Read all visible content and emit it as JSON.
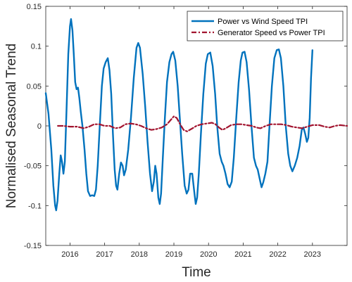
{
  "chart_data": {
    "type": "line",
    "xlabel": "Time",
    "ylabel": "Normalised Seasonal Trend",
    "xlim": [
      2015.3,
      2024.0
    ],
    "ylim": [
      -0.15,
      0.15
    ],
    "x_ticks": [
      2016,
      2017,
      2018,
      2019,
      2020,
      2021,
      2022,
      2023
    ],
    "x_tick_labels": [
      "2016",
      "2017",
      "2018",
      "2019",
      "2020",
      "2021",
      "2022",
      "2023"
    ],
    "y_ticks": [
      -0.15,
      -0.1,
      -0.05,
      0,
      0.05,
      0.1,
      0.15
    ],
    "y_tick_labels": [
      "-0.15",
      "-0.1",
      "-0.05",
      "0",
      "0.05",
      "0.1",
      "0.15"
    ],
    "grid": false,
    "legend_position": "top-right",
    "series": [
      {
        "name": "Power vs Wind Speed TPI",
        "color": "#0072BD",
        "style": "solid",
        "points": [
          [
            2015.3,
            0.041
          ],
          [
            2015.38,
            0.015
          ],
          [
            2015.46,
            -0.03
          ],
          [
            2015.52,
            -0.075
          ],
          [
            2015.57,
            -0.1
          ],
          [
            2015.6,
            -0.106
          ],
          [
            2015.64,
            -0.094
          ],
          [
            2015.69,
            -0.06
          ],
          [
            2015.73,
            -0.037
          ],
          [
            2015.77,
            -0.045
          ],
          [
            2015.81,
            -0.06
          ],
          [
            2015.85,
            -0.045
          ],
          [
            2015.9,
            0.02
          ],
          [
            2015.95,
            0.09
          ],
          [
            2016.0,
            0.125
          ],
          [
            2016.03,
            0.134
          ],
          [
            2016.07,
            0.12
          ],
          [
            2016.11,
            0.09
          ],
          [
            2016.15,
            0.055
          ],
          [
            2016.19,
            0.046
          ],
          [
            2016.23,
            0.048
          ],
          [
            2016.27,
            0.035
          ],
          [
            2016.31,
            0.018
          ],
          [
            2016.36,
            0.0
          ],
          [
            2016.42,
            -0.03
          ],
          [
            2016.47,
            -0.06
          ],
          [
            2016.52,
            -0.082
          ],
          [
            2016.58,
            -0.088
          ],
          [
            2016.64,
            -0.087
          ],
          [
            2016.7,
            -0.088
          ],
          [
            2016.75,
            -0.08
          ],
          [
            2016.8,
            -0.05
          ],
          [
            2016.86,
            0.0
          ],
          [
            2016.92,
            0.05
          ],
          [
            2016.97,
            0.072
          ],
          [
            2017.03,
            0.08
          ],
          [
            2017.09,
            0.085
          ],
          [
            2017.14,
            0.07
          ],
          [
            2017.19,
            0.04
          ],
          [
            2017.24,
            -0.01
          ],
          [
            2017.29,
            -0.055
          ],
          [
            2017.33,
            -0.075
          ],
          [
            2017.37,
            -0.08
          ],
          [
            2017.42,
            -0.06
          ],
          [
            2017.47,
            -0.046
          ],
          [
            2017.52,
            -0.05
          ],
          [
            2017.56,
            -0.062
          ],
          [
            2017.61,
            -0.055
          ],
          [
            2017.68,
            -0.03
          ],
          [
            2017.76,
            0.01
          ],
          [
            2017.84,
            0.06
          ],
          [
            2017.92,
            0.098
          ],
          [
            2017.97,
            0.104
          ],
          [
            2018.02,
            0.098
          ],
          [
            2018.1,
            0.065
          ],
          [
            2018.17,
            0.025
          ],
          [
            2018.24,
            -0.02
          ],
          [
            2018.31,
            -0.06
          ],
          [
            2018.37,
            -0.082
          ],
          [
            2018.42,
            -0.07
          ],
          [
            2018.46,
            -0.05
          ],
          [
            2018.5,
            -0.06
          ],
          [
            2018.55,
            -0.09
          ],
          [
            2018.59,
            -0.098
          ],
          [
            2018.63,
            -0.085
          ],
          [
            2018.68,
            -0.04
          ],
          [
            2018.74,
            0.01
          ],
          [
            2018.8,
            0.055
          ],
          [
            2018.87,
            0.08
          ],
          [
            2018.93,
            0.09
          ],
          [
            2018.98,
            0.093
          ],
          [
            2019.04,
            0.082
          ],
          [
            2019.11,
            0.05
          ],
          [
            2019.17,
            0.01
          ],
          [
            2019.24,
            -0.035
          ],
          [
            2019.31,
            -0.075
          ],
          [
            2019.37,
            -0.085
          ],
          [
            2019.42,
            -0.08
          ],
          [
            2019.47,
            -0.06
          ],
          [
            2019.53,
            -0.06
          ],
          [
            2019.58,
            -0.08
          ],
          [
            2019.63,
            -0.098
          ],
          [
            2019.67,
            -0.09
          ],
          [
            2019.72,
            -0.06
          ],
          [
            2019.78,
            -0.01
          ],
          [
            2019.85,
            0.04
          ],
          [
            2019.92,
            0.078
          ],
          [
            2019.98,
            0.09
          ],
          [
            2020.05,
            0.092
          ],
          [
            2020.12,
            0.075
          ],
          [
            2020.19,
            0.04
          ],
          [
            2020.25,
            0.0
          ],
          [
            2020.32,
            -0.035
          ],
          [
            2020.38,
            -0.045
          ],
          [
            2020.43,
            -0.05
          ],
          [
            2020.49,
            -0.06
          ],
          [
            2020.55,
            -0.073
          ],
          [
            2020.61,
            -0.077
          ],
          [
            2020.67,
            -0.07
          ],
          [
            2020.73,
            -0.04
          ],
          [
            2020.8,
            0.01
          ],
          [
            2020.87,
            0.055
          ],
          [
            2020.93,
            0.082
          ],
          [
            2020.98,
            0.092
          ],
          [
            2021.04,
            0.093
          ],
          [
            2021.1,
            0.08
          ],
          [
            2021.17,
            0.045
          ],
          [
            2021.24,
            0.0
          ],
          [
            2021.31,
            -0.04
          ],
          [
            2021.37,
            -0.05
          ],
          [
            2021.42,
            -0.055
          ],
          [
            2021.48,
            -0.067
          ],
          [
            2021.53,
            -0.077
          ],
          [
            2021.58,
            -0.071
          ],
          [
            2021.64,
            -0.06
          ],
          [
            2021.7,
            -0.045
          ],
          [
            2021.76,
            0.0
          ],
          [
            2021.83,
            0.05
          ],
          [
            2021.9,
            0.085
          ],
          [
            2021.97,
            0.095
          ],
          [
            2022.03,
            0.096
          ],
          [
            2022.09,
            0.085
          ],
          [
            2022.16,
            0.05
          ],
          [
            2022.23,
            0.0
          ],
          [
            2022.3,
            -0.035
          ],
          [
            2022.36,
            -0.05
          ],
          [
            2022.42,
            -0.057
          ],
          [
            2022.49,
            -0.05
          ],
          [
            2022.56,
            -0.04
          ],
          [
            2022.63,
            -0.025
          ],
          [
            2022.69,
            -0.005
          ],
          [
            2022.74,
            -0.002
          ],
          [
            2022.79,
            -0.01
          ],
          [
            2022.84,
            -0.02
          ],
          [
            2022.88,
            -0.015
          ],
          [
            2022.92,
            0.01
          ],
          [
            2022.96,
            0.06
          ],
          [
            2023.0,
            0.095
          ]
        ]
      },
      {
        "name": "Generator Speed vs Power TPI",
        "color": "#A2142F",
        "style": "dashdot",
        "points": [
          [
            2015.65,
            0.0
          ],
          [
            2015.8,
            0.0
          ],
          [
            2016.0,
            -0.001
          ],
          [
            2016.2,
            -0.001
          ],
          [
            2016.4,
            -0.003
          ],
          [
            2016.55,
            -0.001
          ],
          [
            2016.7,
            0.002
          ],
          [
            2016.85,
            0.002
          ],
          [
            2017.0,
            0.0
          ],
          [
            2017.15,
            0.0
          ],
          [
            2017.3,
            -0.003
          ],
          [
            2017.45,
            -0.002
          ],
          [
            2017.6,
            0.002
          ],
          [
            2017.75,
            0.003
          ],
          [
            2017.9,
            0.002
          ],
          [
            2018.05,
            0.0
          ],
          [
            2018.2,
            -0.003
          ],
          [
            2018.35,
            -0.005
          ],
          [
            2018.5,
            -0.004
          ],
          [
            2018.65,
            -0.002
          ],
          [
            2018.8,
            0.002
          ],
          [
            2018.92,
            0.008
          ],
          [
            2019.0,
            0.012
          ],
          [
            2019.08,
            0.01
          ],
          [
            2019.18,
            0.002
          ],
          [
            2019.28,
            -0.005
          ],
          [
            2019.38,
            -0.007
          ],
          [
            2019.5,
            -0.004
          ],
          [
            2019.65,
            0.0
          ],
          [
            2019.8,
            0.002
          ],
          [
            2019.95,
            0.003
          ],
          [
            2020.1,
            0.004
          ],
          [
            2020.2,
            0.002
          ],
          [
            2020.3,
            -0.002
          ],
          [
            2020.4,
            -0.005
          ],
          [
            2020.5,
            -0.003
          ],
          [
            2020.65,
            0.001
          ],
          [
            2020.8,
            0.002
          ],
          [
            2020.95,
            0.002
          ],
          [
            2021.1,
            0.001
          ],
          [
            2021.25,
            0.0
          ],
          [
            2021.38,
            -0.002
          ],
          [
            2021.5,
            -0.003
          ],
          [
            2021.65,
            0.0
          ],
          [
            2021.8,
            0.002
          ],
          [
            2021.95,
            0.002
          ],
          [
            2022.1,
            0.002
          ],
          [
            2022.25,
            0.001
          ],
          [
            2022.4,
            -0.001
          ],
          [
            2022.55,
            -0.002
          ],
          [
            2022.7,
            -0.003
          ],
          [
            2022.85,
            -0.001
          ],
          [
            2023.0,
            0.001
          ],
          [
            2023.2,
            0.001
          ],
          [
            2023.35,
            -0.001
          ],
          [
            2023.5,
            -0.002
          ],
          [
            2023.65,
            0.0
          ],
          [
            2023.8,
            0.001
          ],
          [
            2024.0,
            0.0
          ]
        ]
      }
    ]
  }
}
